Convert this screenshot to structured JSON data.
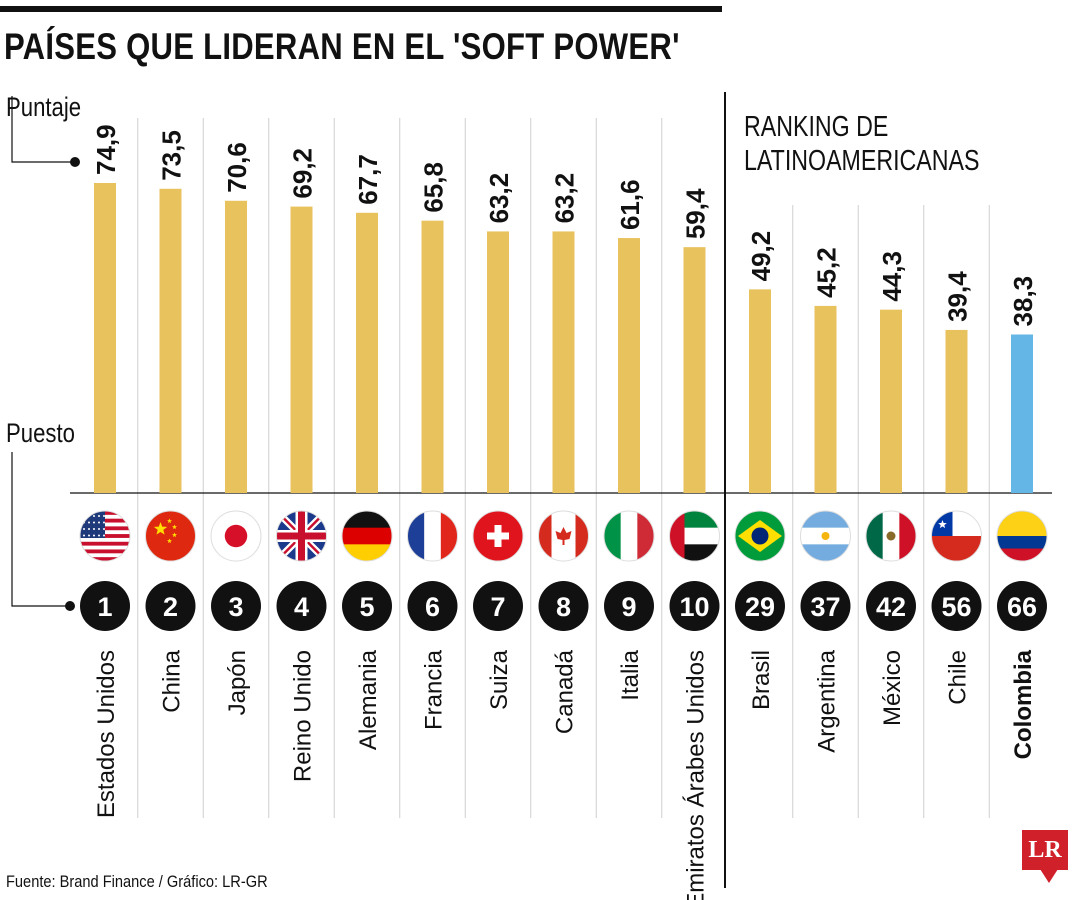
{
  "title": "PAÍSES QUE LIDERAN EN EL 'SOFT POWER'",
  "labels": {
    "score": "Puntaje",
    "rank": "Puesto"
  },
  "latam_title": {
    "line1": "RANKING DE",
    "line2": "LATINOAMERICANAS"
  },
  "source": "Fuente: Brand Finance / Gráfico: LR-GR",
  "logo": "LR",
  "colors": {
    "bar_default": "#e8c25d",
    "bar_highlight": "#63b6e6",
    "rank_circle": "#111111"
  },
  "chart_data": {
    "type": "bar",
    "title": "PAÍSES QUE LIDERAN EN EL 'SOFT POWER'",
    "ylabel": "Puntaje",
    "ylim": [
      0,
      100
    ],
    "grid": true,
    "categories": [
      "Estados Unidos",
      "China",
      "Japón",
      "Reino Unido",
      "Alemania",
      "Francia",
      "Suiza",
      "Canadá",
      "Italia",
      "Emiratos Árabes Unidos",
      "Brasil",
      "Argentina",
      "México",
      "Chile",
      "Colombia"
    ],
    "values": [
      74.9,
      73.5,
      70.6,
      69.2,
      67.7,
      65.8,
      63.2,
      63.2,
      61.6,
      59.4,
      49.2,
      45.2,
      44.3,
      39.4,
      38.3
    ],
    "value_labels": [
      "74,9",
      "73,5",
      "70,6",
      "69,2",
      "67,7",
      "65,8",
      "63,2",
      "63,2",
      "61,6",
      "59,4",
      "49,2",
      "45,2",
      "44,3",
      "39,4",
      "38,3"
    ],
    "ranks": [
      "1",
      "2",
      "3",
      "4",
      "5",
      "6",
      "7",
      "8",
      "9",
      "10",
      "29",
      "37",
      "42",
      "56",
      "66"
    ],
    "flags": [
      "usa-flag",
      "china-flag",
      "japan-flag",
      "uk-flag",
      "germany-flag",
      "france-flag",
      "switzerland-flag",
      "canada-flag",
      "italy-flag",
      "uae-flag",
      "brazil-flag",
      "argentina-flag",
      "mexico-flag",
      "chile-flag",
      "colombia-flag"
    ],
    "highlight": "Colombia"
  }
}
